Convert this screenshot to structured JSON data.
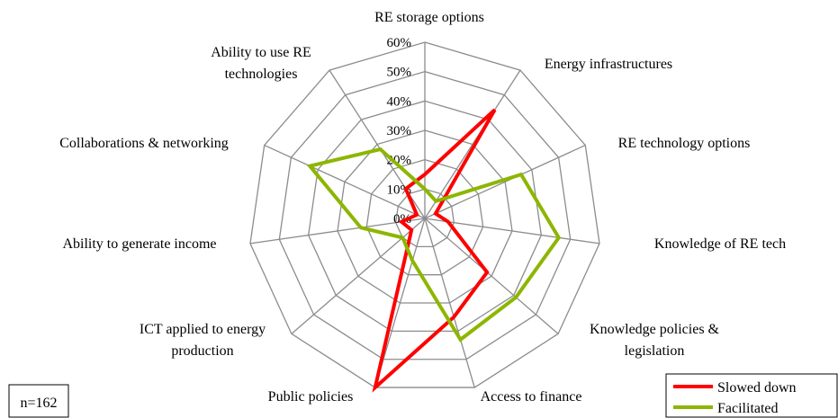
{
  "chart_data": {
    "type": "radar",
    "categories": [
      "RE storage options",
      "Energy infrastructures",
      "RE technology options",
      "Knowledge of RE tech",
      "Knowledge policies &\nlegislation",
      "Access to finance",
      "Public policies",
      "ICT applied to energy\nproduction",
      "Ability to generate income",
      "Collaborations & networking",
      "Ability to use RE\ntechnologies"
    ],
    "series": [
      {
        "name": "Slowed down",
        "color": "#ff0000",
        "values": [
          15,
          44,
          4,
          8,
          28,
          35,
          60,
          6,
          8,
          3,
          12
        ]
      },
      {
        "name": "Facilitated",
        "color": "#8db600",
        "values": [
          10,
          7,
          36,
          46,
          41,
          43,
          15,
          10,
          22,
          43,
          28
        ]
      }
    ],
    "ylim": [
      0,
      60
    ],
    "yticks": [
      {
        "value": 0,
        "label": "0%"
      },
      {
        "value": 10,
        "label": "10%"
      },
      {
        "value": 20,
        "label": "20%"
      },
      {
        "value": 30,
        "label": "30%"
      },
      {
        "value": 40,
        "label": "40%"
      },
      {
        "value": 50,
        "label": "50%"
      },
      {
        "value": 60,
        "label": "60%"
      }
    ],
    "annotation": "n=162",
    "legend": "bottom-right"
  }
}
